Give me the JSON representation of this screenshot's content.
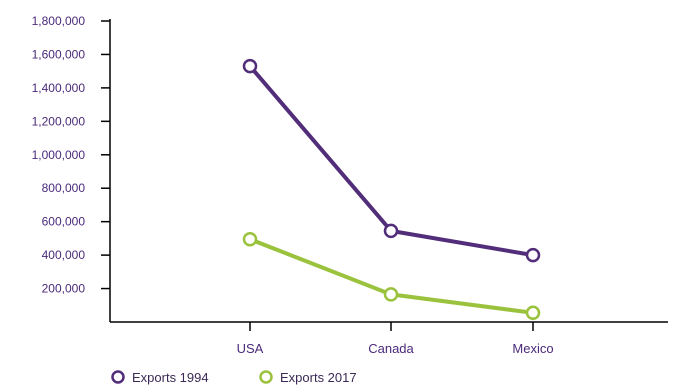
{
  "chart_data": {
    "type": "line",
    "categories": [
      "USA",
      "Canada",
      "Mexico"
    ],
    "series": [
      {
        "name": "Exports 1994",
        "values": [
          1530000,
          545000,
          400000
        ],
        "color": "#512d7a"
      },
      {
        "name": "Exports 2017",
        "values": [
          495000,
          165000,
          55000
        ],
        "color": "#9ac23d"
      }
    ],
    "ylim": [
      0,
      1800000
    ],
    "yticks": [
      200000,
      400000,
      600000,
      800000,
      1000000,
      1200000,
      1400000,
      1600000,
      1800000
    ],
    "ytick_labels": [
      "200,000",
      "400,000",
      "600,000",
      "800,000",
      "1,000,000",
      "1,200,000",
      "1,400,000",
      "1,600,000",
      "1,800,000"
    ],
    "grid": false,
    "legend_position": "bottom-left",
    "axis_color": "#000000",
    "tick_label_color": "#4a2a7a"
  }
}
